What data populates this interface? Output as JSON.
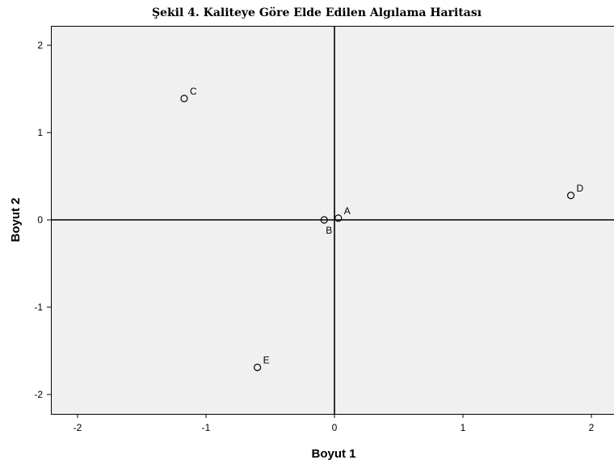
{
  "chart_data": {
    "type": "scatter",
    "title": "Şekil 4. Kaliteye Göre Elde Edilen Algılama Haritası",
    "xlabel": "Boyut 1",
    "ylabel": "Boyut 2",
    "xlim": [
      -2.22,
      2.22
    ],
    "ylim": [
      -2.22,
      2.22
    ],
    "xticks": [
      "-2",
      "-1",
      "0",
      "1",
      "2"
    ],
    "yticks": [
      "-2",
      "-1",
      "0",
      "1",
      "2"
    ],
    "grid": false,
    "reference_lines": {
      "x": 0,
      "y": 0
    },
    "points": [
      {
        "label": "A",
        "x": 0.03,
        "y": 0.02
      },
      {
        "label": "B",
        "x": -0.08,
        "y": 0.0
      },
      {
        "label": "C",
        "x": -1.17,
        "y": 1.39
      },
      {
        "label": "D",
        "x": 1.84,
        "y": 0.28
      },
      {
        "label": "E",
        "x": -0.6,
        "y": -1.69
      }
    ],
    "colors": {
      "plot_background": "#f0f0f0",
      "marker": "#000000"
    }
  }
}
